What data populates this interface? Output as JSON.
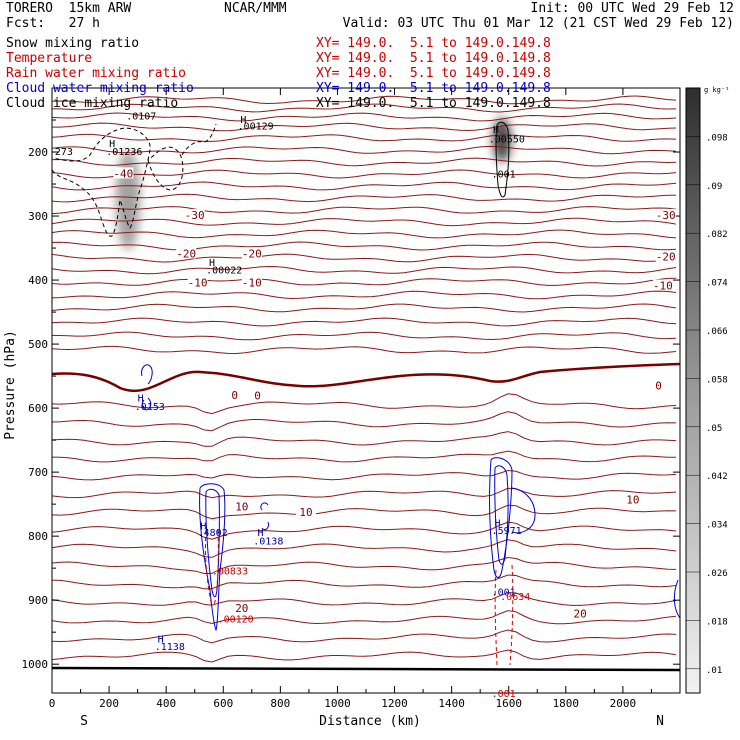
{
  "header": {
    "model": "TORERO  15km ARW",
    "center": "NCAR/MMM",
    "init": "Init: 00 UTC Wed 29 Feb 12",
    "fcst": "Fcst:   27 h",
    "valid": "Valid: 03 UTC Thu 01 Mar 12 (21 CST Wed 29 Feb 12)"
  },
  "fields": [
    {
      "name": "Snow mixing ratio",
      "xy": "XY= 149.0.  5.1 to 149.0.149.8",
      "color": "#000000"
    },
    {
      "name": "Temperature",
      "xy": "XY= 149.0.  5.1 to 149.0.149.8",
      "color": "#cc0000"
    },
    {
      "name": "Rain water mixing ratio",
      "xy": "XY= 149.0.  5.1 to 149.0.149.8",
      "color": "#cc0000"
    },
    {
      "name": "Cloud water mixing ratio",
      "xy": "XY= 149.0.  5.1 to 149.0.149.8",
      "color": "#0000cc"
    },
    {
      "name": "Cloud ice mixing ratio",
      "xy": "XY= 149.0.  5.1 to 149.0.149.8",
      "color": "#000000"
    }
  ],
  "chart_data": {
    "type": "contour",
    "xlabel": "Distance (km)",
    "ylabel": "Pressure (hPa)",
    "xlim": [
      0,
      2200
    ],
    "ylim": [
      1045,
      100
    ],
    "x_ticks": [
      0,
      200,
      400,
      600,
      800,
      1000,
      1200,
      1400,
      1600,
      1800,
      2000
    ],
    "y_ticks": [
      200,
      300,
      400,
      500,
      600,
      700,
      800,
      900,
      1000
    ],
    "x_end_labels": {
      "left": "S",
      "right": "N"
    },
    "colorbar": {
      "unit": "g kg⁻¹",
      "ticks": [
        ".098",
        ".09",
        ".082",
        ".074",
        ".066",
        ".058",
        ".05",
        ".042",
        ".034",
        ".026",
        ".018",
        ".01"
      ]
    },
    "temperature_labels": [
      {
        "x": 250,
        "p": 235,
        "text": "-40"
      },
      {
        "x": 500,
        "p": 300,
        "text": "-30"
      },
      {
        "x": 2150,
        "p": 300,
        "text": "-30"
      },
      {
        "x": 470,
        "p": 360,
        "text": "-20"
      },
      {
        "x": 700,
        "p": 360,
        "text": "-20"
      },
      {
        "x": 2150,
        "p": 365,
        "text": "-20"
      },
      {
        "x": 510,
        "p": 405,
        "text": "-10"
      },
      {
        "x": 700,
        "p": 405,
        "text": "-10"
      },
      {
        "x": 2140,
        "p": 410,
        "text": "-10"
      },
      {
        "x": 640,
        "p": 581,
        "text": "0"
      },
      {
        "x": 720,
        "p": 582,
        "text": "0"
      },
      {
        "x": 2125,
        "p": 566,
        "text": "0"
      },
      {
        "x": 665,
        "p": 755,
        "text": "10"
      },
      {
        "x": 890,
        "p": 764,
        "text": "10"
      },
      {
        "x": 2035,
        "p": 744,
        "text": "10"
      },
      {
        "x": 665,
        "p": 914,
        "text": "20"
      },
      {
        "x": 1850,
        "p": 922,
        "text": "20"
      }
    ],
    "annotations": [
      {
        "x": 200,
        "p": 192,
        "text": "H",
        "color": "#000000"
      },
      {
        "x": 190,
        "p": 205,
        "text": ".01236",
        "color": "#000000"
      },
      {
        "x": 10,
        "p": 205,
        "text": "273",
        "color": "#000000"
      },
      {
        "x": 260,
        "p": 149,
        "text": ".0107",
        "color": "#000000"
      },
      {
        "x": 660,
        "p": 155,
        "text": "H",
        "color": "#000000"
      },
      {
        "x": 650,
        "p": 165,
        "text": ".00129",
        "color": "#000000"
      },
      {
        "x": 1545,
        "p": 170,
        "text": "H",
        "color": "#000000"
      },
      {
        "x": 1530,
        "p": 185,
        "text": ".00550",
        "color": "#000000"
      },
      {
        "x": 1540,
        "p": 240,
        "text": ".001",
        "color": "#000000"
      },
      {
        "x": 550,
        "p": 378,
        "text": "H",
        "color": "#000000"
      },
      {
        "x": 540,
        "p": 390,
        "text": ".00022",
        "color": "#000000"
      },
      {
        "x": 300,
        "p": 590,
        "text": "H",
        "color": "#0000aa"
      },
      {
        "x": 290,
        "p": 603,
        "text": ".0153",
        "color": "#0000aa"
      },
      {
        "x": 520,
        "p": 790,
        "text": "H",
        "color": "#0000aa"
      },
      {
        "x": 510,
        "p": 800,
        "text": ".4802",
        "color": "#0000aa"
      },
      {
        "x": 720,
        "p": 800,
        "text": "H",
        "color": "#0000aa"
      },
      {
        "x": 705,
        "p": 813,
        "text": ".0138",
        "color": "#0000aa"
      },
      {
        "x": 1550,
        "p": 785,
        "text": "H",
        "color": "#0000aa"
      },
      {
        "x": 1540,
        "p": 797,
        "text": ".5971",
        "color": "#0000aa"
      },
      {
        "x": 370,
        "p": 966,
        "text": "H",
        "color": "#0000aa"
      },
      {
        "x": 360,
        "p": 978,
        "text": ".1138",
        "color": "#0000aa"
      },
      {
        "x": 560,
        "p": 860,
        "text": ".00833",
        "color": "#cc0000"
      },
      {
        "x": 580,
        "p": 935,
        "text": ".00120",
        "color": "#cc0000"
      },
      {
        "x": 1540,
        "p": 893,
        "text": ".001",
        "color": "#0000aa"
      },
      {
        "x": 1570,
        "p": 900,
        "text": ".0634",
        "color": "#cc0000"
      },
      {
        "x": 1540,
        "p": 1051,
        "text": ".001",
        "color": "#cc0000"
      }
    ]
  }
}
